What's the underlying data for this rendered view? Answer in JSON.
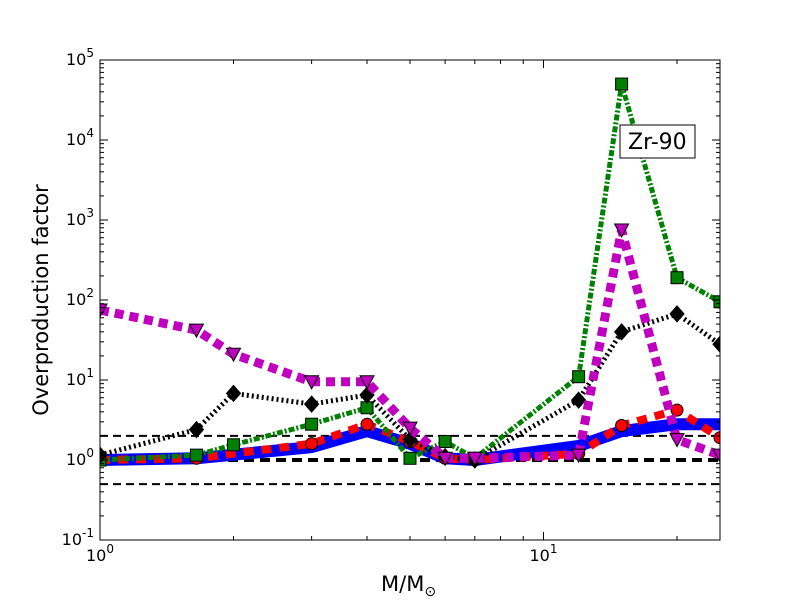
{
  "chart_data": {
    "type": "line",
    "x_scale": "log",
    "y_scale": "log",
    "xlim": [
      1,
      25
    ],
    "ylim": [
      0.1,
      100000
    ],
    "xlabel": "M/M",
    "xlabel_sub": "⊙",
    "ylabel": "Overproduction factor",
    "x_ticks": [
      {
        "value": 1,
        "base": "10",
        "exp": "0"
      },
      {
        "value": 10,
        "base": "10",
        "exp": "1"
      }
    ],
    "y_ticks": [
      {
        "value": 0.1,
        "base": "10",
        "exp": "-1"
      },
      {
        "value": 1,
        "base": "10",
        "exp": "0"
      },
      {
        "value": 10,
        "base": "10",
        "exp": "1"
      },
      {
        "value": 100,
        "base": "10",
        "exp": "2"
      },
      {
        "value": 1000,
        "base": "10",
        "exp": "3"
      },
      {
        "value": 10000,
        "base": "10",
        "exp": "4"
      },
      {
        "value": 100000,
        "base": "10",
        "exp": "5"
      }
    ],
    "annotation": "Zr-90",
    "reference_lines": [
      {
        "y": 2,
        "color": "#000000"
      },
      {
        "y": 1,
        "color": "#000000"
      },
      {
        "y": 0.5,
        "color": "#000000"
      }
    ],
    "series": [
      {
        "color": "#0000ff",
        "marker": "none",
        "x": [
          1,
          1.65,
          3,
          4,
          5,
          6,
          7,
          12,
          15,
          20,
          25
        ],
        "y": [
          1.0,
          1.05,
          1.45,
          2.3,
          1.6,
          1.05,
          1.0,
          1.5,
          2.3,
          2.8,
          2.8
        ]
      },
      {
        "color": "#ff0000",
        "marker": "circle",
        "x": [
          1,
          1.65,
          3,
          4,
          5,
          6,
          7,
          12,
          15,
          20,
          25
        ],
        "y": [
          1.0,
          1.05,
          1.6,
          2.8,
          1.7,
          1.05,
          1.0,
          1.2,
          2.7,
          4.2,
          1.9
        ]
      },
      {
        "color": "#008000",
        "marker": "square",
        "x": [
          1,
          1.65,
          2,
          3,
          4,
          5,
          6,
          7,
          12,
          15,
          20,
          25
        ],
        "y": [
          1.0,
          1.15,
          1.55,
          2.8,
          4.5,
          1.05,
          1.7,
          1.05,
          11,
          50000,
          190,
          95
        ]
      },
      {
        "color": "#000000",
        "marker": "diamond",
        "x": [
          1,
          1.65,
          2,
          3,
          4,
          5,
          6,
          7,
          12,
          15,
          20,
          25
        ],
        "y": [
          1.15,
          2.4,
          6.8,
          5.0,
          6.5,
          1.8,
          1.1,
          1.0,
          5.6,
          40,
          67,
          28
        ]
      },
      {
        "color": "#bf00bf",
        "marker": "triangle-down",
        "x": [
          1,
          1.65,
          2,
          3,
          4,
          5,
          6,
          7,
          12,
          15,
          20,
          25
        ],
        "y": [
          75,
          42,
          21,
          9.5,
          9.5,
          2.5,
          1.05,
          1.05,
          1.15,
          750,
          1.8,
          1.15
        ]
      }
    ]
  }
}
